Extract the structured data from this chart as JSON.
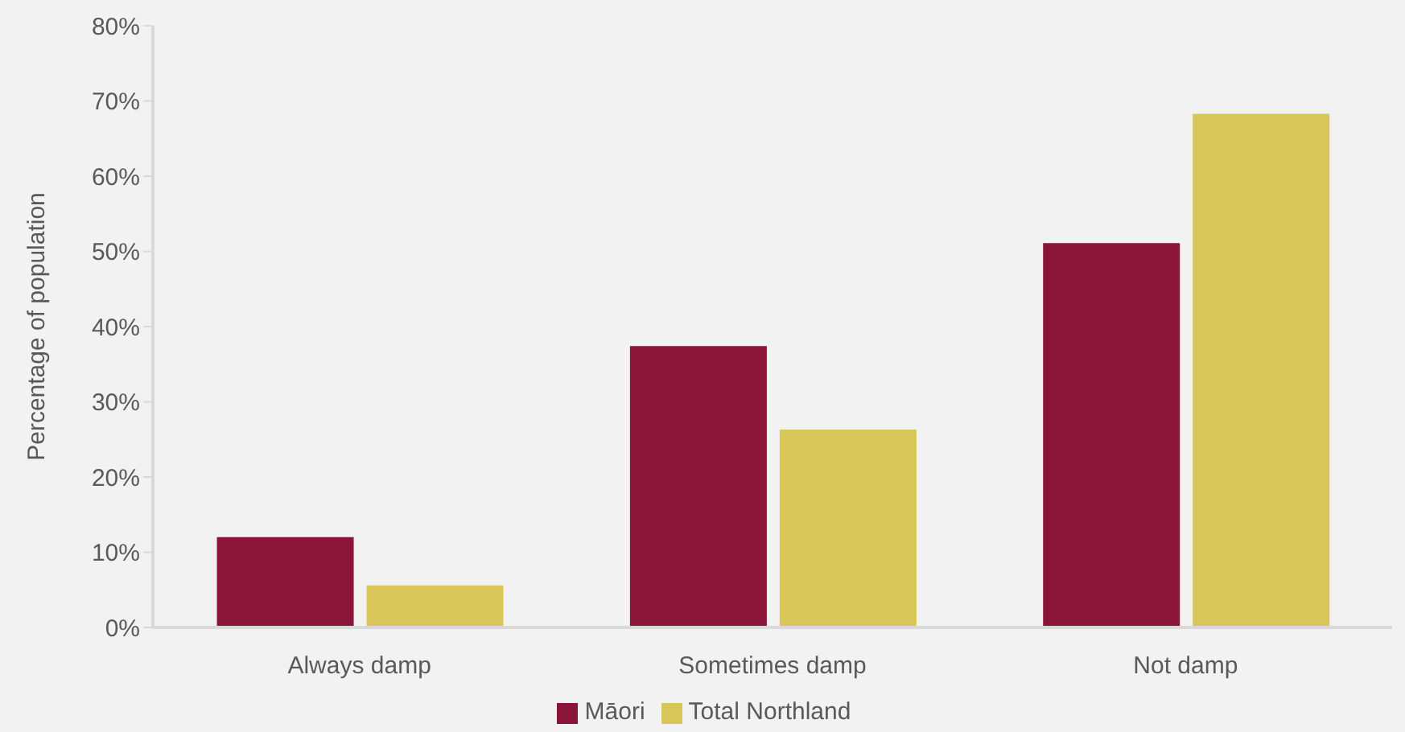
{
  "chart_data": {
    "type": "bar",
    "categories": [
      "Always damp",
      "Sometimes damp",
      "Not damp"
    ],
    "series": [
      {
        "name": "Māori",
        "color": "#8a1538",
        "values": [
          12,
          37.4,
          51.1
        ]
      },
      {
        "name": "Total Northland",
        "color": "#d9c65a",
        "values": [
          5.6,
          26.3,
          68.3
        ]
      }
    ],
    "ylabel": "Percentage of population",
    "ylim": [
      0,
      80
    ],
    "yticks": [
      {
        "value": 0,
        "label": "0%"
      },
      {
        "value": 10,
        "label": "10%"
      },
      {
        "value": 20,
        "label": "20%"
      },
      {
        "value": 30,
        "label": "30%"
      },
      {
        "value": 40,
        "label": "40%"
      },
      {
        "value": 50,
        "label": "50%"
      },
      {
        "value": 60,
        "label": "60%"
      },
      {
        "value": 70,
        "label": "70%"
      },
      {
        "value": 80,
        "label": "80%"
      }
    ],
    "grid": false,
    "legend": "bottom"
  }
}
